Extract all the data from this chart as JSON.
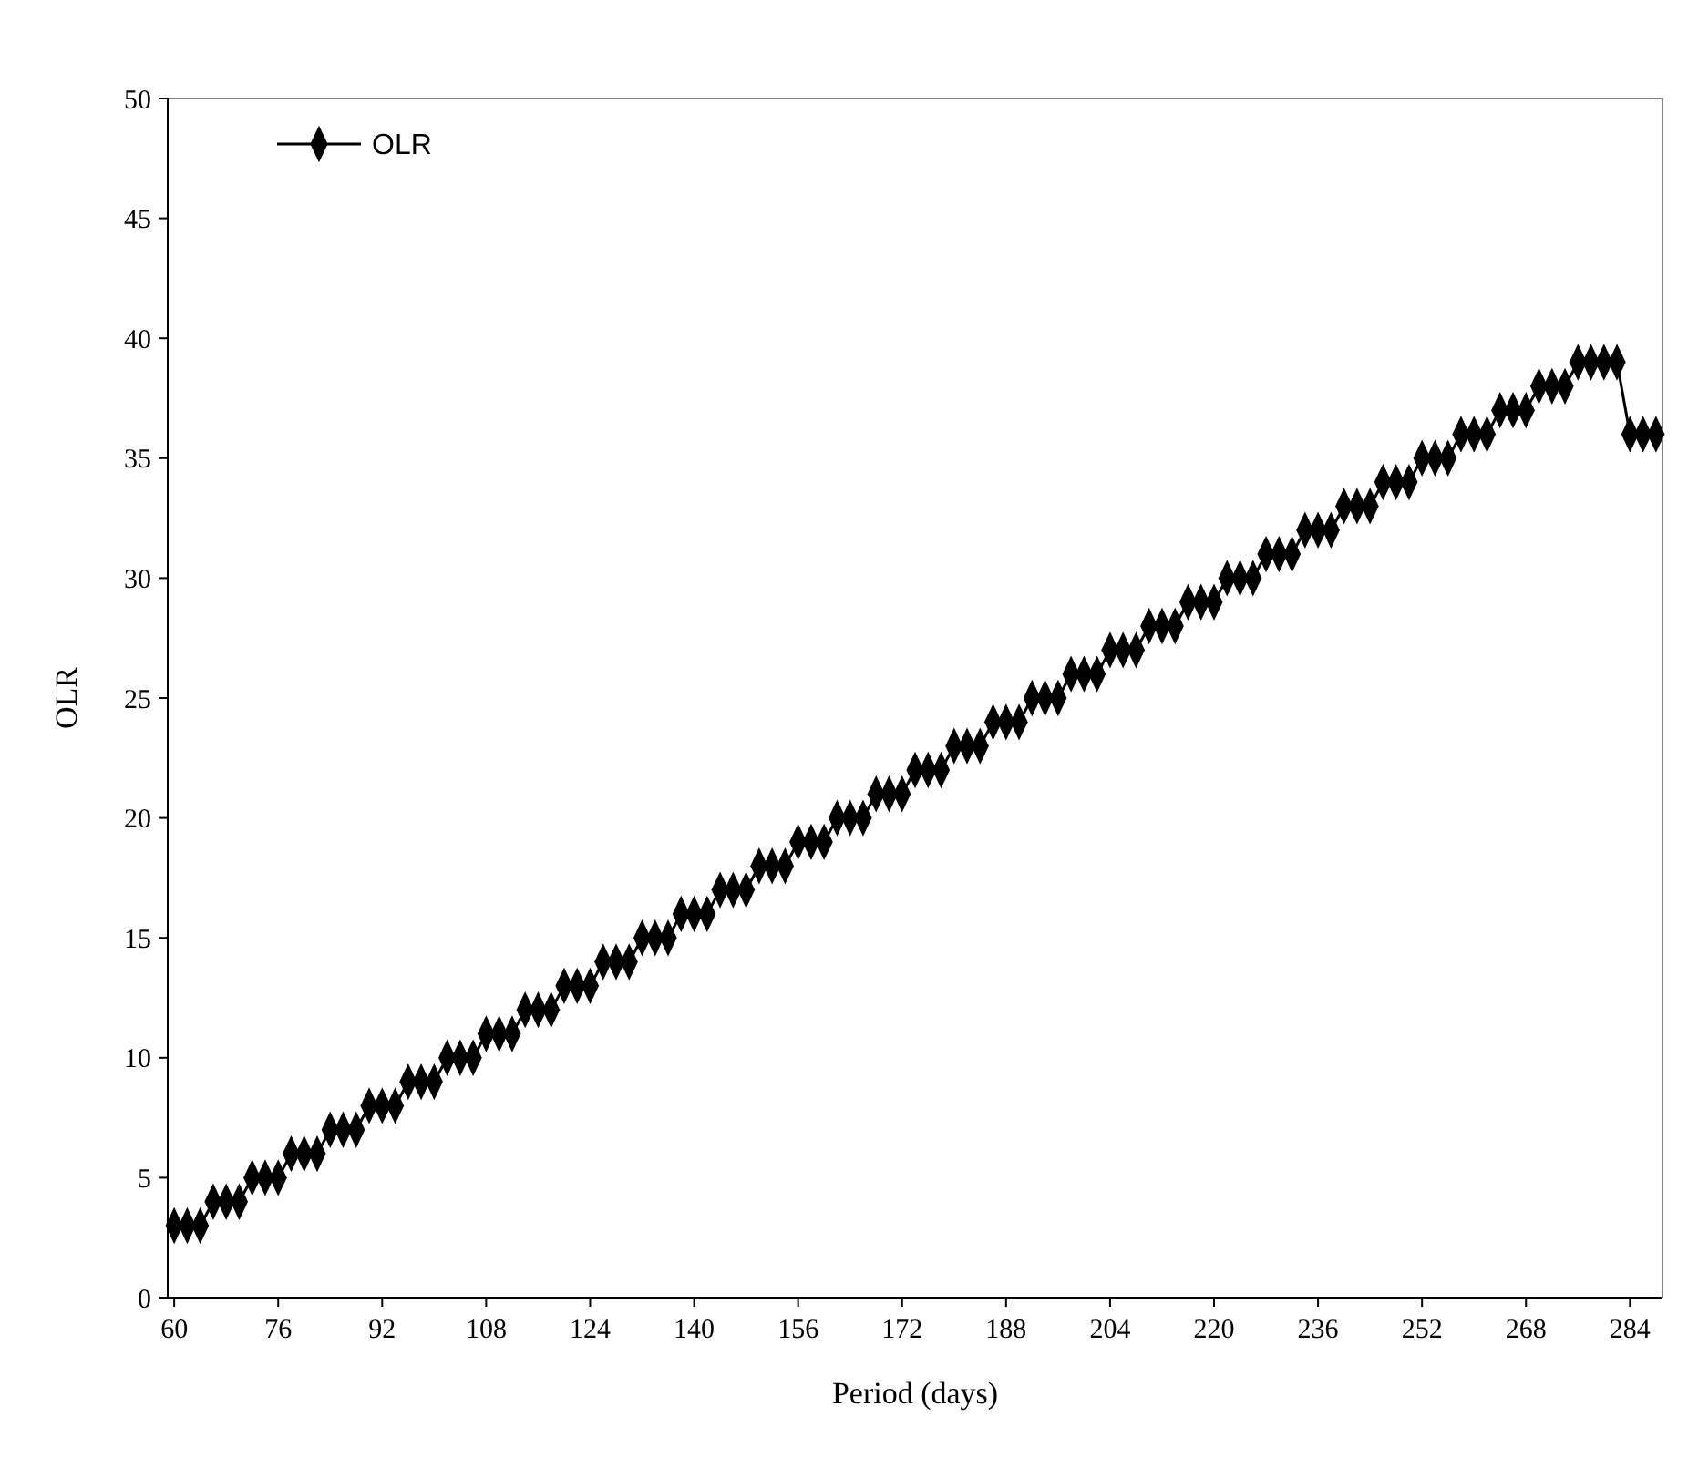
{
  "chart_data": {
    "type": "line",
    "xlabel": "Period (days)",
    "ylabel": "OLR",
    "x": [
      60,
      62,
      64,
      66,
      68,
      70,
      72,
      74,
      76,
      78,
      80,
      82,
      84,
      86,
      88,
      90,
      92,
      94,
      96,
      98,
      100,
      102,
      104,
      106,
      108,
      110,
      112,
      114,
      116,
      118,
      120,
      122,
      124,
      126,
      128,
      130,
      132,
      134,
      136,
      138,
      140,
      142,
      144,
      146,
      148,
      150,
      152,
      154,
      156,
      158,
      160,
      162,
      164,
      166,
      168,
      170,
      172,
      174,
      176,
      178,
      180,
      182,
      184,
      186,
      188,
      190,
      192,
      194,
      196,
      198,
      200,
      202,
      204,
      206,
      208,
      210,
      212,
      214,
      216,
      218,
      220,
      222,
      224,
      226,
      228,
      230,
      232,
      234,
      236,
      238,
      240,
      242,
      244,
      246,
      248,
      250,
      252,
      254,
      256,
      258,
      260,
      262,
      264,
      266,
      268,
      270,
      272,
      274,
      276,
      278,
      280,
      282,
      284,
      286,
      288
    ],
    "series": [
      {
        "name": "OLR",
        "color": "#000000",
        "values": [
          3,
          3,
          3,
          4,
          4,
          4,
          5,
          5,
          5,
          6,
          6,
          6,
          7,
          7,
          7,
          8,
          8,
          8,
          9,
          9,
          9,
          10,
          10,
          10,
          11,
          11,
          11,
          12,
          12,
          12,
          13,
          13,
          13,
          14,
          14,
          14,
          15,
          15,
          15,
          16,
          16,
          16,
          17,
          17,
          17,
          18,
          18,
          18,
          19,
          19,
          19,
          20,
          20,
          20,
          21,
          21,
          21,
          22,
          22,
          22,
          23,
          23,
          23,
          24,
          24,
          24,
          25,
          25,
          25,
          26,
          26,
          26,
          27,
          27,
          27,
          28,
          28,
          28,
          29,
          29,
          29,
          30,
          30,
          30,
          31,
          31,
          31,
          32,
          32,
          32,
          33,
          33,
          33,
          34,
          34,
          34,
          35,
          35,
          35,
          36,
          36,
          36,
          37,
          37,
          37,
          38,
          38,
          38,
          39,
          39,
          39,
          39,
          36,
          36,
          36
        ]
      }
    ],
    "xlim": [
      59,
      289
    ],
    "xticks": [
      60,
      76,
      92,
      108,
      124,
      140,
      156,
      172,
      188,
      204,
      220,
      236,
      252,
      268,
      284
    ],
    "ylim": [
      0,
      50
    ],
    "yticks": [
      0,
      5,
      10,
      15,
      20,
      25,
      30,
      35,
      40,
      45,
      50
    ],
    "grid": false,
    "legend": "top left",
    "marker": "diamond",
    "line_style": "solid"
  }
}
